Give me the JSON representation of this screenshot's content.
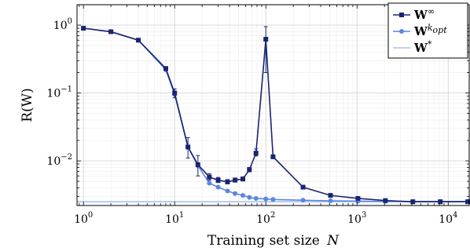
{
  "chart_data": {
    "type": "line",
    "title": "",
    "xlabel": "Training set size",
    "xlabel_var": "N",
    "ylabel": "R(W)",
    "xscale": "log",
    "yscale": "log",
    "xlim": [
      0.85,
      17000
    ],
    "ylim": [
      0.0022,
      2.0
    ],
    "x_ticks": [
      {
        "value": 1,
        "base": "10",
        "exp": "0"
      },
      {
        "value": 10,
        "base": "10",
        "exp": "1"
      },
      {
        "value": 100,
        "base": "10",
        "exp": "2"
      },
      {
        "value": 1000,
        "base": "10",
        "exp": "3"
      },
      {
        "value": 10000,
        "base": "10",
        "exp": "4"
      }
    ],
    "y_ticks": [
      {
        "value": 1,
        "base": "10",
        "exp": "0"
      },
      {
        "value": 0.1,
        "base": "10",
        "exp": "−1"
      },
      {
        "value": 0.01,
        "base": "10",
        "exp": "−2"
      }
    ],
    "grid": true,
    "legend_position": "top-right",
    "series": [
      {
        "name": "W^∞",
        "legend_base": "W",
        "legend_sup": "∞",
        "color": "#1a2470",
        "marker": "square",
        "x": [
          1,
          2,
          4,
          8,
          10,
          14,
          18,
          24,
          30,
          38,
          46,
          56,
          66,
          78,
          100,
          120,
          256,
          512,
          1024,
          2048,
          4096,
          8192,
          16384
        ],
        "y": [
          0.9,
          0.8,
          0.6,
          0.23,
          0.1,
          0.016,
          0.0088,
          0.0058,
          0.0052,
          0.0049,
          0.0052,
          0.0054,
          0.0074,
          0.013,
          0.62,
          0.0115,
          0.0041,
          0.0031,
          0.0028,
          0.0026,
          0.0025,
          0.0025,
          0.0025
        ],
        "err_low": [
          0.88,
          0.79,
          0.59,
          0.22,
          0.085,
          0.011,
          0.006,
          0.0052,
          0.0048,
          0.0046,
          0.0049,
          0.0051,
          0.0069,
          0.0118,
          0.2,
          0.0108,
          0.004,
          0.003,
          0.0027,
          0.0026,
          0.0025,
          0.0025,
          0.0025
        ],
        "err_high": [
          0.92,
          0.81,
          0.61,
          0.24,
          0.115,
          0.022,
          0.012,
          0.0065,
          0.0057,
          0.0053,
          0.0056,
          0.0058,
          0.008,
          0.015,
          0.95,
          0.0122,
          0.0042,
          0.0032,
          0.0029,
          0.0027,
          0.0026,
          0.0026,
          0.0026
        ]
      },
      {
        "name": "W^k_opt",
        "legend_base": "W",
        "legend_sup": "k",
        "legend_sub": "opt",
        "color": "#5b86e0",
        "marker": "circle",
        "x": [
          1,
          2,
          4,
          8,
          10,
          14,
          18,
          24,
          30,
          38,
          46,
          56,
          66,
          78,
          100,
          120,
          256,
          512,
          1024,
          2048,
          4096,
          8192,
          16384
        ],
        "y": [
          0.9,
          0.8,
          0.6,
          0.22,
          0.095,
          0.016,
          0.0085,
          0.0047,
          0.0041,
          0.0036,
          0.0033,
          0.0031,
          0.0029,
          0.0028,
          0.00275,
          0.0027,
          0.00263,
          0.00258,
          0.00255,
          0.00253,
          0.00252,
          0.00252,
          0.00252
        ]
      },
      {
        "name": "W^*",
        "legend_base": "W",
        "legend_sup": "*",
        "color": "#a9c3f0",
        "marker": "none",
        "x": [
          0.85,
          17000
        ],
        "y": [
          0.0025,
          0.0025
        ]
      }
    ]
  }
}
